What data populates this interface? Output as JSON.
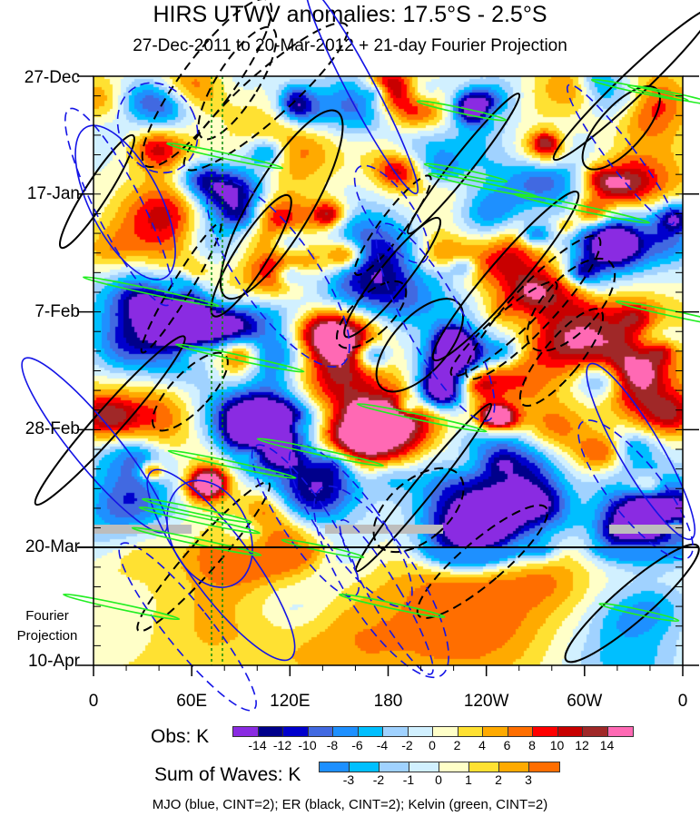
{
  "chart_data": {
    "type": "heatmap",
    "title": "HIRS UTWV anomalies: 17.5°S - 2.5°S",
    "subtitle": "27-Dec-2011 to 20-Mar-2012 + 21-day Fourier Projection",
    "y_ticks": [
      "27-Dec",
      "17-Jan",
      "7-Feb",
      "28-Feb",
      "20-Mar",
      "10-Apr"
    ],
    "x_ticks": [
      "0",
      "60E",
      "120E",
      "180",
      "120W",
      "60W",
      "0"
    ],
    "xlim": [
      0,
      360
    ],
    "annotation": "Fourier Projection",
    "obs_colorbar": {
      "label": "Obs: K",
      "levels": [
        "-14",
        "-12",
        "-10",
        "-8",
        "-6",
        "-4",
        "-2",
        "0",
        "2",
        "4",
        "6",
        "8",
        "10",
        "12",
        "14"
      ],
      "colors": [
        "#8a2be2",
        "#00008b",
        "#0000cd",
        "#4169e1",
        "#1e90ff",
        "#00bfff",
        "#a0d2ff",
        "#d1f0ff",
        "#ffffc8",
        "#ffe132",
        "#ffaa00",
        "#ff6e00",
        "#ff0000",
        "#c80000",
        "#a02828",
        "#ff69b4"
      ]
    },
    "waves_colorbar": {
      "label": "Sum of Waves: K",
      "levels": [
        "-3",
        "-2",
        "-1",
        "0",
        "1",
        "2",
        "3"
      ],
      "colors": [
        "#1e90ff",
        "#00bfff",
        "#a0d2ff",
        "#d1f0ff",
        "#ffffc8",
        "#ffe132",
        "#ffaa00",
        "#ff6e00"
      ]
    },
    "legend": "MJO (blue, CINT=2); ER (black, CINT=2); Kelvin (green, CINT=2)"
  }
}
